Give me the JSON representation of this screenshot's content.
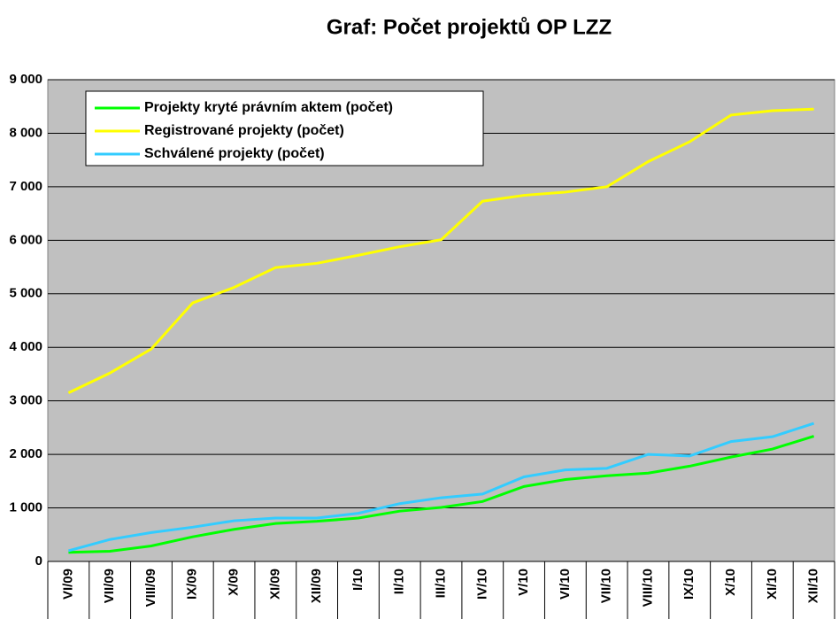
{
  "chart_data": {
    "type": "line",
    "title": "Graf: Počet projektů OP LZZ",
    "categories": [
      "VI/09",
      "VII/09",
      "VIII/09",
      "IX/09",
      "X/09",
      "XI/09",
      "XII/09",
      "I/10",
      "II/10",
      "III/10",
      "IV/10",
      "V/10",
      "VI/10",
      "VII/10",
      "VIII/10",
      "IX/10",
      "X/10",
      "XI/10",
      "XII/10"
    ],
    "series": [
      {
        "name": "Projekty kryté právním aktem (počet)",
        "color": "#00ff00",
        "values": [
          170,
          190,
          290,
          460,
          600,
          710,
          750,
          810,
          940,
          1010,
          1120,
          1400,
          1530,
          1600,
          1650,
          1780,
          1950,
          2100,
          2340
        ]
      },
      {
        "name": "Registrované projekty (počet)",
        "color": "#ffff00",
        "values": [
          3150,
          3520,
          3970,
          4830,
          5120,
          5490,
          5570,
          5720,
          5880,
          6010,
          6730,
          6840,
          6900,
          7000,
          7470,
          7840,
          8340,
          8420,
          8450
        ]
      },
      {
        "name": "Schválené projekty (počet)",
        "color": "#33ccff",
        "values": [
          200,
          410,
          540,
          640,
          760,
          810,
          810,
          900,
          1080,
          1190,
          1260,
          1580,
          1710,
          1740,
          2000,
          1970,
          2240,
          2330,
          2580
        ]
      }
    ],
    "ylim": [
      0,
      9000
    ],
    "yticks": [
      0,
      {
        "value": 1000,
        "label": "1 000"
      },
      {
        "value": 2000,
        "label": "2 000"
      },
      {
        "value": 3000,
        "label": "3 000"
      },
      {
        "value": 4000,
        "label": "4 000"
      },
      {
        "value": 5000,
        "label": "5 000"
      },
      {
        "value": 6000,
        "label": "6 000"
      },
      {
        "value": 7000,
        "label": "7 000"
      },
      {
        "value": 8000,
        "label": "8 000"
      },
      {
        "value": 9000,
        "label": "9 000"
      }
    ],
    "grid": true,
    "background": "#c0c0c0"
  }
}
